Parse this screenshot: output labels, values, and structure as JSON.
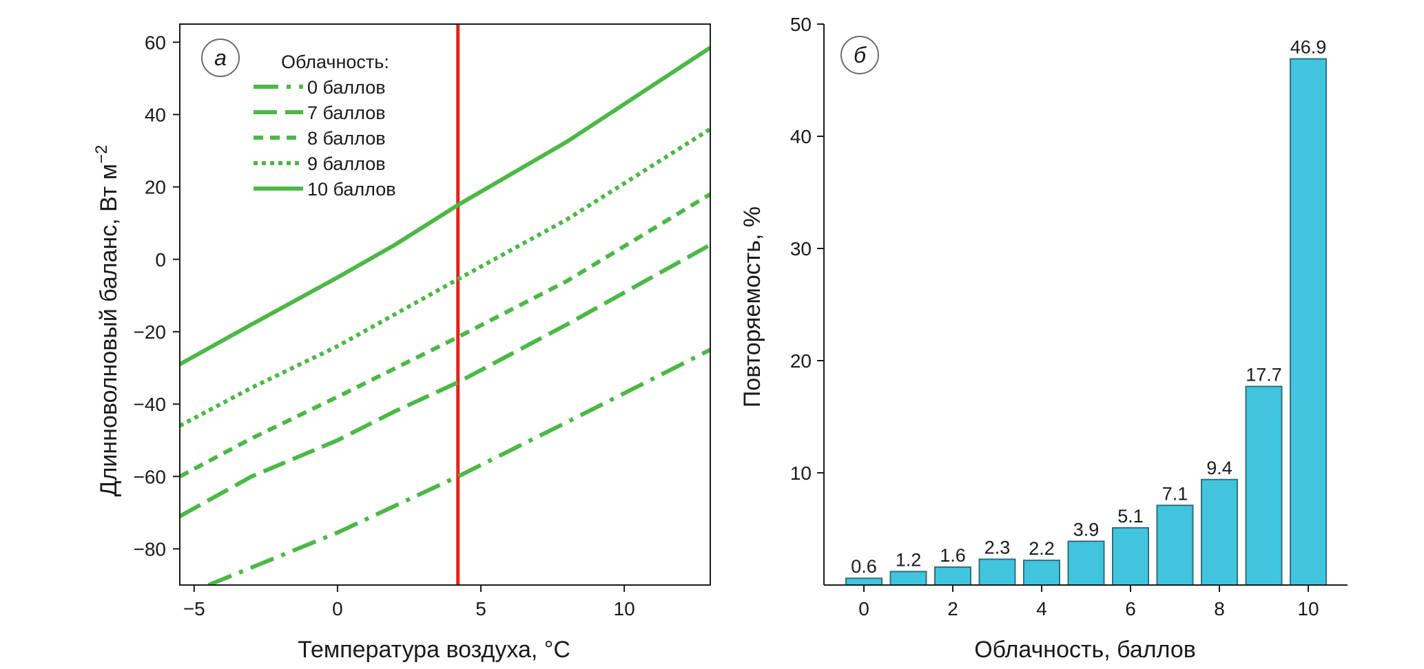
{
  "chart_data": [
    {
      "panel_label": "а",
      "type": "line",
      "xlabel": "Температура воздуха, °C",
      "ylabel": "Длинноволновый баланс, Вт м",
      "ylabel_exponent": "−2",
      "xlim": [
        -5.5,
        13
      ],
      "ylim": [
        -90,
        65
      ],
      "xticks": [
        -5,
        0,
        5,
        10
      ],
      "xtick_labels": [
        "−5",
        "0",
        "5",
        "10"
      ],
      "yticks": [
        -80,
        -60,
        -40,
        -20,
        0,
        20,
        40,
        60
      ],
      "ytick_labels": [
        "−80",
        "−60",
        "−40",
        "−20",
        "0",
        "20",
        "40",
        "60"
      ],
      "grid": false,
      "legend_title": "Облачность:",
      "legend_position": "top-left",
      "reference_line": {
        "x": 4.2,
        "color": "#e8211d"
      },
      "line_color": "#4db848",
      "series": [
        {
          "name": "0 баллов",
          "style": "dash-dot",
          "x": [
            -4.5,
            0,
            4.2,
            8,
            13
          ],
          "y": [
            -90,
            -75.5,
            -60,
            -45,
            -25
          ]
        },
        {
          "name": "7 баллов",
          "style": "long-dash",
          "x": [
            -5.5,
            -3,
            0,
            2,
            4.2,
            8,
            13
          ],
          "y": [
            -71,
            -60,
            -50,
            -42,
            -34,
            -18,
            4
          ]
        },
        {
          "name": "8 баллов",
          "style": "dash",
          "x": [
            -5.5,
            -3,
            0,
            4.2,
            8,
            13
          ],
          "y": [
            -60,
            -49.5,
            -38,
            -21.5,
            -6,
            18
          ]
        },
        {
          "name": "9 баллов",
          "style": "dot",
          "x": [
            -5.5,
            -3,
            0,
            4.2,
            8,
            13
          ],
          "y": [
            -46,
            -35.5,
            -24,
            -5.5,
            11,
            36
          ]
        },
        {
          "name": "10 баллов",
          "style": "solid",
          "x": [
            -5.5,
            -3,
            0,
            2,
            4.2,
            8,
            13
          ],
          "y": [
            -29,
            -18,
            -5,
            4,
            15,
            32.5,
            58.5
          ]
        }
      ]
    },
    {
      "panel_label": "б",
      "type": "bar",
      "xlabel": "Облачность, баллов",
      "ylabel": "Повторяемость, %",
      "categories": [
        0,
        1,
        2,
        3,
        4,
        5,
        6,
        7,
        8,
        9,
        10
      ],
      "values": [
        0.6,
        1.2,
        1.6,
        2.3,
        2.2,
        3.9,
        5.1,
        7.1,
        9.4,
        17.7,
        46.9
      ],
      "value_labels": [
        "0.6",
        "1.2",
        "1.6",
        "2.3",
        "2.2",
        "3.9",
        "5.1",
        "7.1",
        "9.4",
        "17.7",
        "46.9"
      ],
      "xticks": [
        0,
        2,
        4,
        6,
        8,
        10
      ],
      "xtick_labels": [
        "0",
        "2",
        "4",
        "6",
        "8",
        "10"
      ],
      "yticks": [
        10,
        20,
        30,
        40,
        50
      ],
      "ytick_labels": [
        "10",
        "20",
        "30",
        "40",
        "50"
      ],
      "ylim": [
        0,
        50
      ],
      "grid": false,
      "bar_color": "#41c4de"
    }
  ]
}
